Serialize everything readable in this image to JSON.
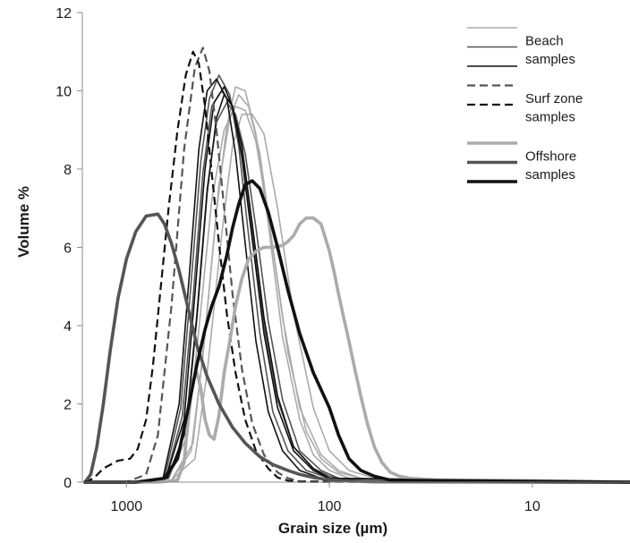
{
  "chart_data": {
    "type": "line",
    "xlabel": "Grain size (µm)",
    "ylabel": "Volume %",
    "x_scale": "log",
    "x_reversed": true,
    "xlim": [
      1650,
      3.3
    ],
    "ylim": [
      0,
      12
    ],
    "x_ticks": [
      1000,
      100,
      10
    ],
    "x_tick_labels": [
      "1000",
      "100",
      "10"
    ],
    "y_ticks": [
      0,
      2,
      4,
      6,
      8,
      10,
      12
    ],
    "y_tick_labels": [
      "0",
      "2",
      "4",
      "6",
      "8",
      "10",
      "12"
    ],
    "grid": false,
    "legend_position": "top-right",
    "legend": [
      {
        "label": "Beach samples",
        "line1": "Beach",
        "line2": "samples",
        "group": "beach"
      },
      {
        "label": "Surf zone samples",
        "line1": "Surf zone",
        "line2": "samples",
        "group": "surf"
      },
      {
        "label": "Offshore samples",
        "line1": "Offshore",
        "line2": "samples",
        "group": "offshore"
      }
    ],
    "colors": {
      "light_gray": "#ababab",
      "mid_gray": "#555555",
      "black": "#111111"
    },
    "series": [
      {
        "group": "beach",
        "color": "#ababab",
        "width": 1.6,
        "dash": "",
        "x": [
          1600,
          900,
          600,
          480,
          420,
          360,
          320,
          290,
          260,
          230,
          200,
          170,
          140,
          120,
          100,
          80,
          60,
          40,
          20,
          10,
          3.3
        ],
        "y": [
          0,
          0,
          0.05,
          0.8,
          3.2,
          6.9,
          9.1,
          10.1,
          10.0,
          8.9,
          6.6,
          3.7,
          1.6,
          0.7,
          0.3,
          0.1,
          0.04,
          0.02,
          0,
          0,
          0
        ]
      },
      {
        "group": "beach",
        "color": "#ababab",
        "width": 1.6,
        "dash": "",
        "x": [
          1600,
          900,
          600,
          470,
          410,
          350,
          310,
          280,
          250,
          220,
          190,
          160,
          130,
          110,
          90,
          70,
          50,
          30,
          15,
          3.3
        ],
        "y": [
          0,
          0,
          0.05,
          1.0,
          3.8,
          7.6,
          9.3,
          9.9,
          9.6,
          8.4,
          6.0,
          3.3,
          1.3,
          0.6,
          0.25,
          0.1,
          0.03,
          0.01,
          0,
          0
        ]
      },
      {
        "group": "beach",
        "color": "#ababab",
        "width": 1.6,
        "dash": "",
        "x": [
          1600,
          900,
          620,
          500,
          440,
          380,
          330,
          290,
          260,
          230,
          200,
          170,
          140,
          110,
          90,
          70,
          50,
          30,
          3.3
        ],
        "y": [
          0,
          0,
          0.1,
          1.2,
          3.9,
          7.2,
          9.0,
          9.6,
          9.5,
          8.7,
          6.8,
          4.2,
          1.9,
          0.7,
          0.3,
          0.1,
          0.03,
          0.01,
          0
        ]
      },
      {
        "group": "beach",
        "color": "#ababab",
        "width": 1.6,
        "dash": "",
        "x": [
          1600,
          900,
          600,
          460,
          400,
          340,
          300,
          270,
          240,
          210,
          180,
          150,
          120,
          100,
          80,
          60,
          40,
          20,
          3.3
        ],
        "y": [
          0,
          0,
          0.05,
          0.6,
          2.8,
          6.3,
          8.6,
          9.4,
          9.4,
          8.9,
          7.0,
          4.3,
          1.9,
          0.8,
          0.3,
          0.1,
          0.03,
          0.01,
          0
        ]
      },
      {
        "group": "beach",
        "color": "#555555",
        "width": 1.6,
        "dash": "",
        "x": [
          1600,
          900,
          640,
          530,
          470,
          420,
          380,
          340,
          300,
          270,
          240,
          210,
          180,
          150,
          120,
          100,
          80,
          60,
          3.3
        ],
        "y": [
          0,
          0,
          0.1,
          1.7,
          4.7,
          7.9,
          9.6,
          10.0,
          9.6,
          8.4,
          6.4,
          4.0,
          2.1,
          0.9,
          0.35,
          0.15,
          0.05,
          0.01,
          0
        ]
      },
      {
        "group": "beach",
        "color": "#555555",
        "width": 1.6,
        "dash": "",
        "x": [
          1600,
          900,
          620,
          510,
          450,
          400,
          360,
          320,
          290,
          260,
          230,
          200,
          170,
          140,
          110,
          90,
          70,
          3.3
        ],
        "y": [
          0,
          0,
          0.1,
          1.4,
          4.3,
          7.5,
          9.2,
          9.7,
          9.4,
          8.4,
          6.5,
          4.1,
          2.1,
          0.8,
          0.3,
          0.1,
          0.03,
          0
        ]
      },
      {
        "group": "beach",
        "color": "#555555",
        "width": 1.6,
        "dash": "",
        "x": [
          1600,
          900,
          650,
          540,
          480,
          430,
          390,
          350,
          310,
          280,
          250,
          220,
          190,
          160,
          130,
          100,
          80,
          3.3
        ],
        "y": [
          0,
          0,
          0.1,
          1.9,
          5.1,
          8.2,
          9.8,
          10.4,
          9.9,
          8.6,
          6.3,
          3.8,
          1.8,
          0.8,
          0.3,
          0.1,
          0.03,
          0
        ]
      },
      {
        "group": "beach",
        "color": "#111111",
        "width": 1.6,
        "dash": "",
        "x": [
          1600,
          900,
          660,
          550,
          490,
          440,
          400,
          360,
          320,
          290,
          260,
          230,
          200,
          170,
          140,
          110,
          90,
          3.3
        ],
        "y": [
          0,
          0,
          0.1,
          2.0,
          5.3,
          8.5,
          10.0,
          10.3,
          9.8,
          8.4,
          6.1,
          3.6,
          1.8,
          0.8,
          0.3,
          0.1,
          0.03,
          0
        ]
      },
      {
        "group": "beach",
        "color": "#111111",
        "width": 1.6,
        "dash": "",
        "x": [
          1600,
          900,
          640,
          520,
          460,
          410,
          370,
          330,
          300,
          270,
          240,
          210,
          180,
          150,
          120,
          100,
          3.3
        ],
        "y": [
          0,
          0,
          0.1,
          1.6,
          4.8,
          8.0,
          9.7,
          10.1,
          9.6,
          8.3,
          6.2,
          3.8,
          1.9,
          0.8,
          0.3,
          0.1,
          0
        ]
      },
      {
        "group": "beach",
        "color": "#111111",
        "width": 1.6,
        "dash": "",
        "x": [
          1600,
          900,
          630,
          510,
          450,
          400,
          360,
          330,
          300,
          270,
          240,
          210,
          180,
          150,
          120,
          100,
          3.3
        ],
        "y": [
          0,
          0,
          0.1,
          1.3,
          4.2,
          7.4,
          9.3,
          9.9,
          9.6,
          8.6,
          6.6,
          4.2,
          2.2,
          0.9,
          0.35,
          0.1,
          0
        ]
      },
      {
        "group": "surf",
        "color": "#555555",
        "width": 2.2,
        "dash": "9,5",
        "x": [
          1600,
          1000,
          800,
          700,
          600,
          520,
          460,
          420,
          390,
          360,
          330,
          300,
          270,
          240,
          210,
          180,
          160,
          140,
          3.3
        ],
        "y": [
          0,
          0,
          0.2,
          1.2,
          4.5,
          8.5,
          10.6,
          11.1,
          10.5,
          9.0,
          7.0,
          4.8,
          2.9,
          1.5,
          0.7,
          0.25,
          0.1,
          0.02,
          0
        ]
      },
      {
        "group": "surf",
        "color": "#111111",
        "width": 2.2,
        "dash": "9,5",
        "x": [
          1600,
          1450,
          1300,
          1100,
          960,
          880,
          800,
          740,
          680,
          620,
          560,
          510,
          470,
          440,
          410,
          380,
          350,
          320,
          290,
          260,
          230,
          200,
          180,
          160,
          140,
          3.3
        ],
        "y": [
          0,
          0.1,
          0.35,
          0.55,
          0.6,
          0.85,
          1.6,
          3.0,
          4.9,
          7.0,
          9.0,
          10.4,
          11.0,
          10.7,
          9.6,
          7.9,
          6.1,
          4.3,
          2.8,
          1.6,
          0.8,
          0.35,
          0.12,
          0.04,
          0.01,
          0
        ]
      },
      {
        "group": "offshore",
        "color": "#ababab",
        "width": 3.6,
        "dash": "",
        "x": [
          1600,
          1000,
          700,
          560,
          520,
          490,
          470,
          450,
          430,
          410,
          390,
          370,
          350,
          330,
          310,
          290,
          270,
          250,
          230,
          210,
          190,
          170,
          160,
          150,
          140,
          130,
          120,
          110,
          100,
          95,
          90,
          85,
          80,
          75,
          70,
          65,
          60,
          55,
          50,
          45,
          40,
          35,
          30,
          20,
          10,
          3.3
        ],
        "y": [
          0,
          0,
          0,
          0.05,
          0.5,
          2.0,
          2.6,
          2.8,
          2.4,
          1.6,
          1.2,
          1.1,
          1.7,
          2.8,
          3.6,
          4.5,
          5.2,
          5.7,
          5.9,
          6.0,
          6.0,
          6.05,
          6.15,
          6.3,
          6.6,
          6.75,
          6.75,
          6.6,
          5.9,
          5.4,
          4.8,
          4.2,
          3.6,
          2.9,
          2.2,
          1.5,
          0.9,
          0.5,
          0.25,
          0.15,
          0.1,
          0.08,
          0.06,
          0.05,
          0.04,
          0
        ]
      },
      {
        "group": "offshore",
        "color": "#555555",
        "width": 3.6,
        "dash": "",
        "x": [
          1600,
          1500,
          1400,
          1300,
          1200,
          1100,
          1000,
          900,
          800,
          700,
          650,
          600,
          550,
          500,
          450,
          400,
          350,
          300,
          260,
          220,
          190,
          160,
          140,
          120,
          100,
          80,
          60,
          3.3
        ],
        "y": [
          0,
          0.2,
          0.9,
          2.0,
          3.4,
          4.7,
          5.7,
          6.4,
          6.8,
          6.85,
          6.6,
          6.1,
          5.4,
          4.5,
          3.5,
          2.7,
          2.0,
          1.4,
          1.0,
          0.65,
          0.45,
          0.3,
          0.2,
          0.12,
          0.06,
          0.03,
          0.01,
          0
        ]
      },
      {
        "group": "offshore",
        "color": "#111111",
        "width": 3.6,
        "dash": "",
        "x": [
          1600,
          900,
          650,
          560,
          500,
          450,
          410,
          380,
          350,
          320,
          300,
          280,
          260,
          240,
          220,
          200,
          180,
          160,
          140,
          120,
          100,
          90,
          80,
          70,
          60,
          50,
          3.3
        ],
        "y": [
          0,
          0,
          0.1,
          0.6,
          1.8,
          3.0,
          3.9,
          4.5,
          5.0,
          5.8,
          6.5,
          7.1,
          7.6,
          7.7,
          7.5,
          6.9,
          6.0,
          4.9,
          3.8,
          2.8,
          1.9,
          1.2,
          0.6,
          0.3,
          0.15,
          0.05,
          0
        ]
      }
    ]
  }
}
